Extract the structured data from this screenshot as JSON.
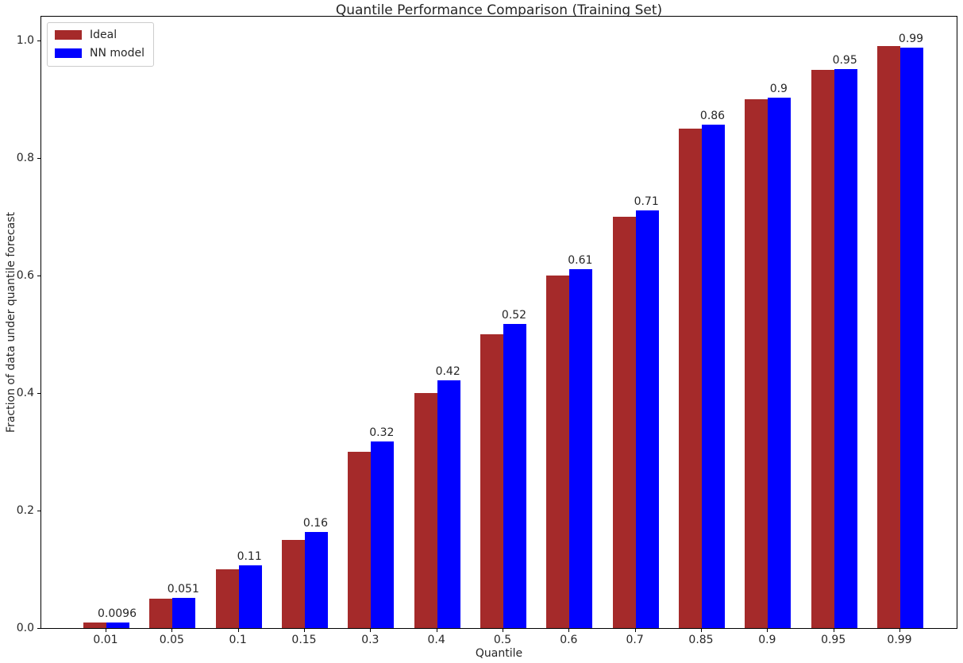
{
  "chart_data": {
    "type": "bar",
    "title": "Quantile Performance Comparison (Training Set)",
    "xlabel": "Quantile",
    "ylabel": "Fraction of data under quantile forecast",
    "categories": [
      "0.01",
      "0.05",
      "0.1",
      "0.15",
      "0.3",
      "0.4",
      "0.5",
      "0.6",
      "0.7",
      "0.85",
      "0.9",
      "0.95",
      "0.99"
    ],
    "series": [
      {
        "name": "Ideal",
        "color": "#a52a2a",
        "values": [
          0.01,
          0.05,
          0.1,
          0.15,
          0.3,
          0.4,
          0.5,
          0.6,
          0.7,
          0.85,
          0.9,
          0.95,
          0.99
        ]
      },
      {
        "name": "NN model",
        "color": "#0000ff",
        "values": [
          0.0096,
          0.051,
          0.107,
          0.163,
          0.318,
          0.422,
          0.517,
          0.611,
          0.711,
          0.857,
          0.903,
          0.952,
          0.988
        ],
        "labels": [
          "0.0096",
          "0.051",
          "0.11",
          "0.16",
          "0.32",
          "0.42",
          "0.52",
          "0.61",
          "0.71",
          "0.86",
          "0.9",
          "0.95",
          "0.99"
        ]
      }
    ],
    "yticks": [
      0.0,
      0.2,
      0.4,
      0.6,
      0.8,
      1.0
    ],
    "ytick_labels": [
      "0.0",
      "0.2",
      "0.4",
      "0.6",
      "0.8",
      "1.0"
    ],
    "ylim": [
      0,
      1.043
    ],
    "legend_position": "upper left",
    "grid": false,
    "colors": {
      "background": "#ffffff",
      "spine": "#000000",
      "text": "#262626"
    }
  }
}
